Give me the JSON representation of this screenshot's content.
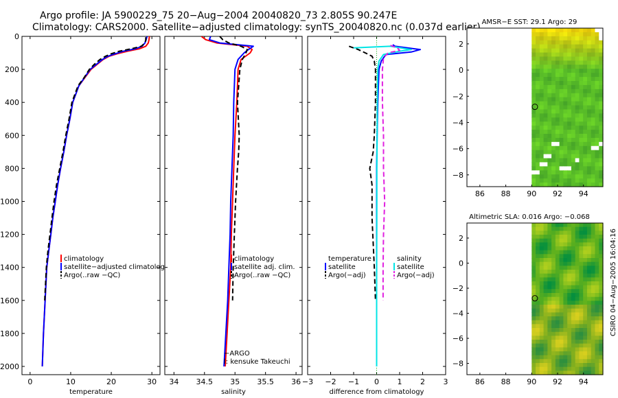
{
  "header": {
    "line1": "Argo profile: JA 5900229_75 20−Aug−2004 20040820_73 2.805S 90.247E",
    "line2": "Climatology: CARS2000. Satellite−adjusted climatology: synTS_20040820.nc (0.037d earlier)"
  },
  "footer": {
    "credit": "CSIRO 04−Aug−2005 16:04:16"
  },
  "colors": {
    "climatology": "#ff0000",
    "satellite": "#0000ff",
    "argo": "#000000",
    "salinity_satellite": "#00e5e5",
    "salinity_argo": "#e020e0",
    "land": "#ffffff",
    "marker": "#000000"
  },
  "chart_data": [
    {
      "id": "temperature",
      "type": "line",
      "xlabel": "temperature",
      "ylabel": "",
      "xlim": [
        -2,
        32
      ],
      "ylim": [
        2050,
        0
      ],
      "yinverted": true,
      "xticks": [
        0,
        10,
        20,
        30
      ],
      "yticks": [
        0,
        200,
        400,
        600,
        800,
        1000,
        1200,
        1400,
        1600,
        1800,
        2000
      ],
      "legend": [
        {
          "label": "climatology",
          "color": "#ff0000",
          "style": "solid"
        },
        {
          "label": "satellite−adjusted climatology",
          "color": "#0000ff",
          "style": "solid"
        },
        {
          "label": "Argo(..raw −QC)",
          "color": "#000000",
          "style": "dashed"
        }
      ],
      "series": [
        {
          "name": "climatology",
          "color": "#ff0000",
          "style": "solid",
          "width": 2,
          "x": [
            29.4,
            29.3,
            29.1,
            28.5,
            27,
            24,
            21.5,
            19.5,
            18,
            16.5,
            15,
            13.5,
            12,
            10.5,
            9.8,
            9,
            8.3,
            7.5,
            6.8,
            6.2,
            5.6,
            5.1,
            4.6,
            4.1,
            3.7,
            3.3,
            3
          ],
          "y": [
            0,
            20,
            40,
            60,
            75,
            90,
            105,
            120,
            140,
            170,
            200,
            250,
            300,
            400,
            500,
            600,
            700,
            800,
            900,
            1000,
            1100,
            1200,
            1300,
            1400,
            1600,
            1800,
            2000
          ]
        },
        {
          "name": "satellite-adjusted climatology",
          "color": "#0000ff",
          "style": "solid",
          "width": 2,
          "x": [
            28.8,
            28.6,
            28.3,
            27.6,
            26,
            23,
            21,
            19.2,
            17.8,
            16.3,
            14.8,
            13.4,
            12,
            10.5,
            9.8,
            9,
            8.3,
            7.5,
            6.8,
            6.2,
            5.6,
            5.1,
            4.6,
            4.1,
            3.7,
            3.3,
            3
          ],
          "y": [
            0,
            20,
            40,
            60,
            75,
            90,
            105,
            120,
            140,
            170,
            200,
            250,
            300,
            400,
            500,
            600,
            700,
            800,
            900,
            1000,
            1100,
            1200,
            1300,
            1400,
            1600,
            1800,
            2000
          ]
        },
        {
          "name": "Argo(..raw -QC)",
          "color": "#000000",
          "style": "dashed",
          "width": 2,
          "x": [
            28.5,
            28.5,
            28.3,
            27.4,
            25,
            22,
            20,
            18.6,
            17.2,
            15.8,
            14.6,
            13.3,
            11.8,
            10.3,
            9.6,
            8.8,
            8.1,
            7.3,
            6.5,
            5.9,
            5.4,
            4.9,
            4.4,
            4,
            3.6
          ],
          "y": [
            5,
            20,
            40,
            60,
            75,
            90,
            105,
            120,
            140,
            170,
            200,
            250,
            300,
            400,
            500,
            600,
            700,
            800,
            900,
            1000,
            1100,
            1200,
            1300,
            1400,
            1600
          ]
        }
      ]
    },
    {
      "id": "salinity",
      "type": "line",
      "xlabel": "salinity",
      "ylabel": "",
      "xlim": [
        33.85,
        36.1
      ],
      "ylim": [
        2050,
        0
      ],
      "yinverted": true,
      "xticks": [
        34,
        34.5,
        35,
        35.5,
        36
      ],
      "xticklabels": [
        "34",
        "34.5",
        "35",
        "35.5",
        "36"
      ],
      "legend": [
        {
          "label": "climatology",
          "color": "#ff0000",
          "style": "solid"
        },
        {
          "label": "satellite adj. clim.",
          "color": "#0000ff",
          "style": "solid"
        },
        {
          "label": "Argo(..raw −QC)",
          "color": "#000000",
          "style": "dashed"
        }
      ],
      "annotations": [
        "−ARGO",
        "l: kensuke Takeuchi"
      ],
      "series": [
        {
          "name": "climatology",
          "color": "#ff0000",
          "style": "solid",
          "width": 2,
          "x": [
            34.45,
            34.52,
            34.7,
            35.2,
            35.28,
            35.25,
            35.1,
            35.05,
            35.03,
            35.0,
            34.98,
            34.96,
            34.94,
            34.93,
            34.9,
            34.87,
            34.84
          ],
          "y": [
            0,
            20,
            40,
            60,
            80,
            100,
            140,
            200,
            400,
            600,
            800,
            1000,
            1200,
            1400,
            1600,
            1800,
            2000
          ]
        },
        {
          "name": "satellite adj. clim.",
          "color": "#0000ff",
          "style": "solid",
          "width": 2,
          "x": [
            34.6,
            34.58,
            34.75,
            35.3,
            35.22,
            35.15,
            35.05,
            35.0,
            34.98,
            34.97,
            34.95,
            34.93,
            34.92,
            34.9,
            34.88,
            34.85,
            34.82
          ],
          "y": [
            0,
            20,
            40,
            60,
            80,
            100,
            140,
            200,
            400,
            600,
            800,
            1000,
            1200,
            1400,
            1600,
            1800,
            2000
          ]
        },
        {
          "name": "Argo(..raw -QC)",
          "color": "#000000",
          "style": "dashed",
          "width": 2,
          "x": [
            34.75,
            34.8,
            34.9,
            35.1,
            35.2,
            35.18,
            35.12,
            35.08,
            35.06,
            35.04,
            35.07,
            35.06,
            35.04,
            35.01,
            34.99,
            34.97,
            34.96
          ],
          "y": [
            0,
            20,
            40,
            60,
            80,
            100,
            140,
            200,
            300,
            400,
            600,
            700,
            800,
            1000,
            1200,
            1400,
            1600
          ]
        }
      ]
    },
    {
      "id": "difference",
      "type": "line",
      "xlabel": "difference from climatology",
      "ylabel": "",
      "xlim": [
        -3,
        3
      ],
      "ylim": [
        2050,
        0
      ],
      "yinverted": true,
      "xticks": [
        -3,
        -2,
        -1,
        0,
        1,
        2,
        3
      ],
      "xticklabels": [
        "−3",
        "−2",
        "−1",
        "0",
        "1",
        "2",
        "3"
      ],
      "legend_left": [
        {
          "label": "temperature",
          "color": "",
          "style": "none"
        },
        {
          "label": "satellite",
          "color": "#0000ff",
          "style": "solid"
        },
        {
          "label": "Argo(−adj)",
          "color": "#000000",
          "style": "dashed"
        }
      ],
      "legend_right": [
        {
          "label": "salinity",
          "color": "",
          "style": "none"
        },
        {
          "label": "satellite",
          "color": "#00e5e5",
          "style": "solid"
        },
        {
          "label": "Argo(−adj)",
          "color": "#e020e0",
          "style": "dashed"
        }
      ],
      "series": [
        {
          "name": "temperature satellite",
          "color": "#0000ff",
          "style": "solid",
          "width": 2,
          "x": [
            0.7,
            0.8,
            1.9,
            1.5,
            0.4,
            0.2,
            0.1,
            0.05,
            0.02,
            0.0,
            0.0,
            0.0,
            0.0,
            0.0
          ],
          "y": [
            50,
            60,
            80,
            95,
            110,
            150,
            200,
            400,
            600,
            800,
            1000,
            1400,
            1800,
            2000
          ]
        },
        {
          "name": "temperature Argo(-adj)",
          "color": "#000000",
          "style": "dashed",
          "width": 2,
          "x": [
            -1.2,
            -0.8,
            -0.5,
            -0.2,
            -0.1,
            -0.05,
            -0.05,
            -0.1,
            -0.15,
            -0.3,
            -0.2,
            -0.2,
            -0.1,
            -0.05
          ],
          "y": [
            60,
            80,
            100,
            120,
            150,
            200,
            400,
            600,
            700,
            800,
            900,
            1100,
            1400,
            1600
          ]
        },
        {
          "name": "salinity satellite",
          "color": "#00e5e5",
          "style": "solid",
          "width": 2,
          "x": [
            -1.0,
            0.6,
            1.5,
            1.0,
            0.3,
            0.1,
            0.05,
            0.03,
            0.02,
            0.01,
            0.01,
            0.0,
            0.0
          ],
          "y": [
            70,
            60,
            80,
            90,
            110,
            150,
            200,
            400,
            600,
            800,
            1000,
            1500,
            2000
          ]
        },
        {
          "name": "salinity Argo(-adj)",
          "color": "#e020e0",
          "style": "dashed",
          "width": 2,
          "x": [
            0.6,
            0.9,
            1.0,
            0.5,
            0.3,
            0.25,
            0.25,
            0.3,
            0.3,
            0.35,
            0.3,
            0.28,
            0.28
          ],
          "y": [
            55,
            70,
            85,
            100,
            130,
            200,
            400,
            600,
            800,
            1000,
            1200,
            1400,
            1600
          ]
        }
      ]
    },
    {
      "id": "sst_map",
      "type": "heatmap",
      "title": "AMSR−E SST: 29.1 Argo: 29",
      "xlim": [
        85,
        95.5
      ],
      "ylim": [
        -8.9,
        3.2
      ],
      "xticks": [
        86,
        88,
        90,
        92,
        94
      ],
      "yticks": [
        2,
        0,
        -2,
        -4,
        -6,
        -8
      ],
      "yticklabels": [
        "2",
        "0",
        "−2",
        "−4",
        "−6",
        "−8"
      ],
      "data_lon_start": 90,
      "float_position": {
        "lon": 90.247,
        "lat": -2.805
      }
    },
    {
      "id": "sla_map",
      "type": "heatmap",
      "title": "Altimetric SLA: 0.016 Argo: −0.068",
      "xlim": [
        85,
        95.5
      ],
      "ylim": [
        -8.9,
        3.2
      ],
      "xticks": [
        86,
        88,
        90,
        92,
        94
      ],
      "yticks": [
        2,
        0,
        -2,
        -4,
        -6,
        -8
      ],
      "yticklabels": [
        "2",
        "0",
        "−2",
        "−4",
        "−6",
        "−8"
      ],
      "data_lon_start": 90,
      "float_position": {
        "lon": 90.247,
        "lat": -2.805
      }
    }
  ]
}
